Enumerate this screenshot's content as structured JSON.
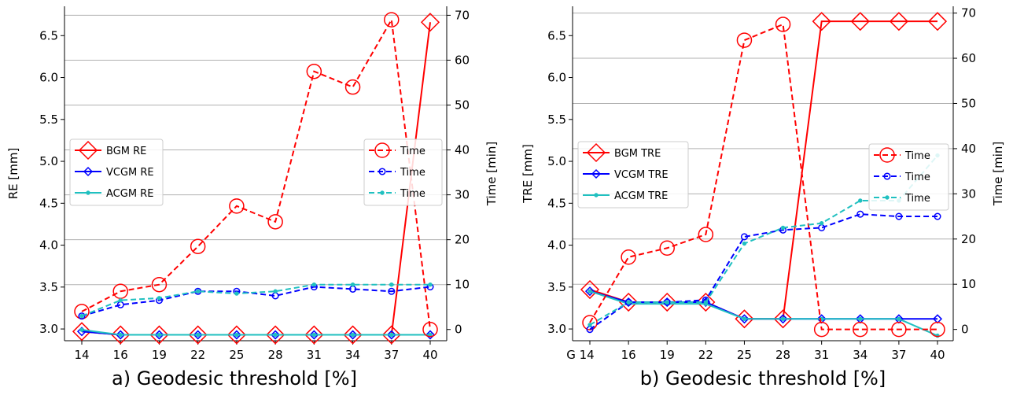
{
  "chart_data": [
    {
      "type": "line",
      "title": "a) Geodesic threshold [%]",
      "xlabel": "a) Geodesic threshold [%]",
      "ylabel": "RE [mm]",
      "y2label": "Time [min]",
      "categories": [
        "14",
        "16",
        "19",
        "22",
        "25",
        "28",
        "31",
        "34",
        "37",
        "40"
      ],
      "ylim": [
        2.86,
        6.85
      ],
      "y2lim": [
        -2.5,
        72
      ],
      "yticks": [
        3.0,
        3.5,
        4.0,
        4.5,
        5.0,
        5.5,
        6.0,
        6.5
      ],
      "y2ticks": [
        0,
        10,
        20,
        30,
        40,
        50,
        60,
        70
      ],
      "grid_y2": true,
      "legend_left_placement": "center-left",
      "legend_right_placement": "center-right",
      "series": [
        {
          "name": "BGM   RE",
          "axis": "left",
          "style": "solid",
          "color": "#ff0000",
          "marker": "diamond-large",
          "values": [
            2.97,
            2.93,
            2.93,
            2.93,
            2.93,
            2.93,
            2.93,
            2.93,
            2.93,
            6.66
          ]
        },
        {
          "name": "VCGM   RE",
          "axis": "left",
          "style": "solid",
          "color": "#0000ff",
          "marker": "diamond-small",
          "values": [
            2.97,
            2.93,
            2.93,
            2.93,
            2.93,
            2.93,
            2.93,
            2.93,
            2.93,
            2.93
          ]
        },
        {
          "name": "ACGM   RE",
          "axis": "left",
          "style": "solid",
          "color": "#20c0c0",
          "marker": "dot",
          "values": [
            2.99,
            2.93,
            2.93,
            2.93,
            2.93,
            2.93,
            2.93,
            2.93,
            2.93,
            2.93
          ]
        },
        {
          "name": "Time",
          "axis": "right",
          "style": "dashed",
          "color": "#ff0000",
          "marker": "circle-large",
          "values": [
            4,
            8.5,
            10,
            18.5,
            27.5,
            24,
            57.5,
            54,
            69,
            0
          ]
        },
        {
          "name": "Time",
          "axis": "right",
          "style": "dashed",
          "color": "#0000ff",
          "marker": "circle-small",
          "values": [
            3,
            5.5,
            6.5,
            8.5,
            8.5,
            7.5,
            9.5,
            9,
            8.5,
            9.5
          ]
        },
        {
          "name": "Time",
          "axis": "right",
          "style": "dashed",
          "color": "#20c0c0",
          "marker": "dot",
          "values": [
            3,
            6.5,
            7,
            8.5,
            8,
            8.5,
            10,
            10,
            10,
            10
          ]
        }
      ]
    },
    {
      "type": "line",
      "title": "b) Geodesic threshold [%]",
      "xlabel": "b) Geodesic threshold [%]",
      "ylabel": "TRE [mm]",
      "y2label": "Time [min]",
      "categories": [
        "G 14",
        "16",
        "19",
        "22",
        "25",
        "28",
        "31",
        "34",
        "37",
        "40"
      ],
      "ylim": [
        2.86,
        6.85
      ],
      "y2lim": [
        -2.5,
        71.5
      ],
      "yticks": [
        3.0,
        3.5,
        4.0,
        4.5,
        5.0,
        5.5,
        6.0,
        6.5
      ],
      "y2ticks": [
        0,
        10,
        20,
        30,
        40,
        50,
        60,
        70
      ],
      "grid_y2": true,
      "legend_left_placement": "center-left",
      "legend_right_placement": "center-right",
      "series": [
        {
          "name": "BGM TRE",
          "axis": "left",
          "style": "solid",
          "color": "#ff0000",
          "marker": "diamond-large",
          "values": [
            3.47,
            3.32,
            3.32,
            3.32,
            3.12,
            3.12,
            6.67,
            6.67,
            6.67,
            6.67
          ]
        },
        {
          "name": "VCGM TRE",
          "axis": "left",
          "style": "solid",
          "color": "#0000ff",
          "marker": "diamond-small",
          "values": [
            3.45,
            3.32,
            3.32,
            3.32,
            3.12,
            3.12,
            3.12,
            3.12,
            3.12,
            3.12
          ]
        },
        {
          "name": "ACGM TRE",
          "axis": "left",
          "style": "solid",
          "color": "#20c0c0",
          "marker": "dot",
          "values": [
            3.45,
            3.3,
            3.3,
            3.3,
            3.12,
            3.12,
            3.12,
            3.12,
            3.12,
            2.92
          ]
        },
        {
          "name": "Time",
          "axis": "right",
          "style": "dashed",
          "color": "#ff0000",
          "marker": "circle-large",
          "values": [
            1.5,
            16,
            18,
            21,
            64,
            67.5,
            0,
            0,
            0,
            0
          ]
        },
        {
          "name": "Time",
          "axis": "right",
          "style": "dashed",
          "color": "#0000ff",
          "marker": "circle-small",
          "values": [
            0,
            6,
            6,
            6.5,
            20.5,
            22,
            22.5,
            25.5,
            25,
            25
          ]
        },
        {
          "name": "Time",
          "axis": "right",
          "style": "dashed",
          "color": "#20c0c0",
          "marker": "dot",
          "values": [
            1,
            6,
            6,
            6,
            19,
            22.5,
            23.5,
            28.5,
            28.5,
            38.5
          ]
        }
      ]
    }
  ]
}
